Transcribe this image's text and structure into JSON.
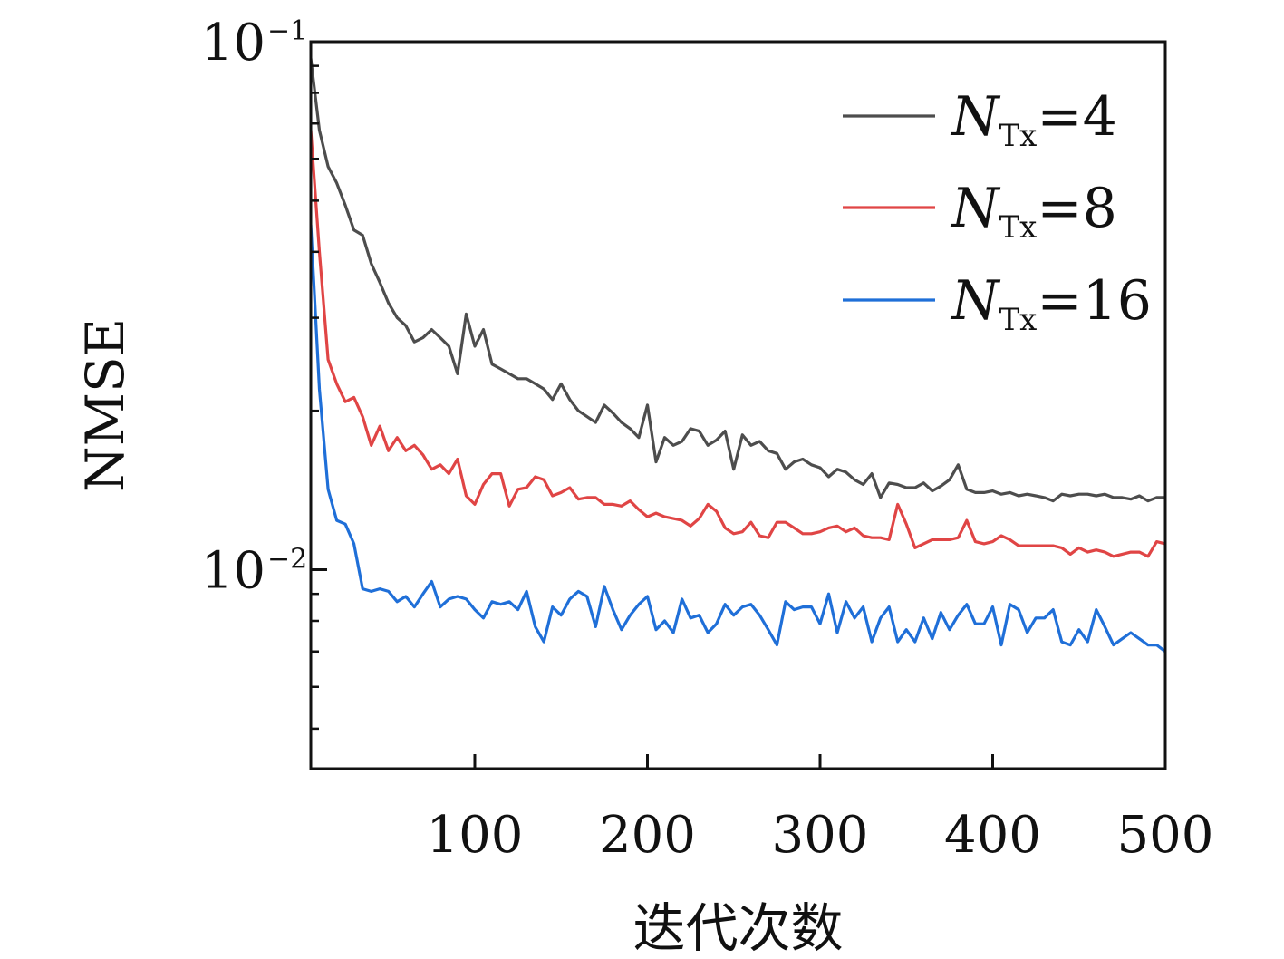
{
  "chart_data": {
    "type": "line",
    "xlabel": "迭代次数",
    "ylabel": "NMSE",
    "xlim": [
      5,
      500
    ],
    "ylim": [
      0.0042,
      0.1
    ],
    "yscale": "log",
    "xticks": [
      100,
      200,
      300,
      400,
      500
    ],
    "xtick_labels": [
      "100",
      "200",
      "300",
      "400",
      "500"
    ],
    "yticks": [
      0.1,
      0.01
    ],
    "ytick_labels": [
      {
        "base": "10",
        "exp": "−1"
      },
      {
        "base": "10",
        "exp": "−2"
      }
    ],
    "grid": false,
    "legend": "top-right",
    "series": [
      {
        "name": "N_Tx=4",
        "label_main": "N",
        "label_sub": "Tx",
        "label_rest": "=4",
        "color": "#4d4d4d",
        "x": [
          5,
          10,
          15,
          20,
          25,
          30,
          35,
          40,
          45,
          50,
          55,
          60,
          65,
          70,
          75,
          80,
          85,
          90,
          95,
          100,
          105,
          110,
          115,
          120,
          125,
          130,
          135,
          140,
          145,
          150,
          155,
          160,
          165,
          170,
          175,
          180,
          185,
          190,
          195,
          200,
          205,
          210,
          215,
          220,
          225,
          230,
          235,
          240,
          245,
          250,
          255,
          260,
          265,
          270,
          275,
          280,
          285,
          290,
          295,
          300,
          305,
          310,
          315,
          320,
          325,
          330,
          335,
          340,
          345,
          350,
          355,
          360,
          365,
          370,
          375,
          380,
          385,
          390,
          395,
          400,
          405,
          410,
          415,
          420,
          425,
          430,
          435,
          440,
          445,
          450,
          455,
          460,
          465,
          470,
          475,
          480,
          485,
          490,
          495,
          500
        ],
        "y": [
          0.093,
          0.068,
          0.058,
          0.054,
          0.049,
          0.044,
          0.043,
          0.038,
          0.035,
          0.032,
          0.03,
          0.029,
          0.027,
          0.0275,
          0.0285,
          0.0275,
          0.0265,
          0.0235,
          0.0305,
          0.0265,
          0.0285,
          0.0245,
          0.024,
          0.0235,
          0.023,
          0.023,
          0.0225,
          0.022,
          0.021,
          0.0225,
          0.021,
          0.02,
          0.0195,
          0.019,
          0.0205,
          0.0198,
          0.019,
          0.0185,
          0.0178,
          0.0205,
          0.016,
          0.0178,
          0.0172,
          0.0175,
          0.0185,
          0.0183,
          0.0172,
          0.0176,
          0.0183,
          0.0155,
          0.018,
          0.0172,
          0.0175,
          0.0168,
          0.0166,
          0.0155,
          0.016,
          0.0162,
          0.0158,
          0.0156,
          0.015,
          0.0155,
          0.0153,
          0.0148,
          0.0145,
          0.0152,
          0.0137,
          0.0146,
          0.0145,
          0.0143,
          0.0143,
          0.0146,
          0.0141,
          0.0144,
          0.0148,
          0.0158,
          0.0142,
          0.014,
          0.014,
          0.0141,
          0.0139,
          0.014,
          0.0138,
          0.0139,
          0.0138,
          0.0137,
          0.0135,
          0.0139,
          0.0138,
          0.0139,
          0.0139,
          0.0138,
          0.0139,
          0.0137,
          0.0137,
          0.0136,
          0.0138,
          0.0135,
          0.0137,
          0.0137
        ]
      },
      {
        "name": "N_Tx=8",
        "label_main": "N",
        "label_sub": "Tx",
        "label_rest": "=8",
        "color": "#e04545",
        "x": [
          5,
          10,
          15,
          20,
          25,
          30,
          35,
          40,
          45,
          50,
          55,
          60,
          65,
          70,
          75,
          80,
          85,
          90,
          95,
          100,
          105,
          110,
          115,
          120,
          125,
          130,
          135,
          140,
          145,
          150,
          155,
          160,
          165,
          170,
          175,
          180,
          185,
          190,
          195,
          200,
          205,
          210,
          215,
          220,
          225,
          230,
          235,
          240,
          245,
          250,
          255,
          260,
          265,
          270,
          275,
          280,
          285,
          290,
          295,
          300,
          305,
          310,
          315,
          320,
          325,
          330,
          335,
          340,
          345,
          350,
          355,
          360,
          365,
          370,
          375,
          380,
          385,
          390,
          395,
          400,
          405,
          410,
          415,
          420,
          425,
          430,
          435,
          440,
          445,
          450,
          455,
          460,
          465,
          470,
          475,
          480,
          485,
          490,
          495,
          500
        ],
        "y": [
          0.068,
          0.04,
          0.025,
          0.0225,
          0.0208,
          0.0212,
          0.0195,
          0.0172,
          0.0187,
          0.0168,
          0.0178,
          0.0168,
          0.0172,
          0.0165,
          0.0155,
          0.0158,
          0.0152,
          0.0162,
          0.0138,
          0.0133,
          0.0145,
          0.0152,
          0.0152,
          0.0132,
          0.0142,
          0.0143,
          0.015,
          0.0148,
          0.0138,
          0.014,
          0.0143,
          0.0136,
          0.0137,
          0.0137,
          0.0133,
          0.0133,
          0.0132,
          0.0135,
          0.013,
          0.0126,
          0.0128,
          0.0126,
          0.0125,
          0.0124,
          0.0121,
          0.0125,
          0.0133,
          0.0129,
          0.012,
          0.0117,
          0.0118,
          0.0123,
          0.0116,
          0.0115,
          0.0123,
          0.0123,
          0.012,
          0.0117,
          0.0117,
          0.0118,
          0.012,
          0.0121,
          0.0118,
          0.012,
          0.0116,
          0.0115,
          0.0115,
          0.0114,
          0.0133,
          0.0122,
          0.011,
          0.0112,
          0.0114,
          0.0114,
          0.0114,
          0.0115,
          0.0124,
          0.0113,
          0.0112,
          0.0113,
          0.0116,
          0.0114,
          0.0111,
          0.0111,
          0.0111,
          0.0111,
          0.0111,
          0.011,
          0.0107,
          0.011,
          0.0108,
          0.0109,
          0.0108,
          0.0106,
          0.0107,
          0.0108,
          0.0108,
          0.0106,
          0.0113,
          0.0112
        ]
      },
      {
        "name": "N_Tx=16",
        "label_main": "N",
        "label_sub": "Tx",
        "label_rest": "=16",
        "color": "#1f6fd8",
        "x": [
          5,
          10,
          15,
          20,
          25,
          30,
          35,
          40,
          45,
          50,
          55,
          60,
          65,
          70,
          75,
          80,
          85,
          90,
          95,
          100,
          105,
          110,
          115,
          120,
          125,
          130,
          135,
          140,
          145,
          150,
          155,
          160,
          165,
          170,
          175,
          180,
          185,
          190,
          195,
          200,
          205,
          210,
          215,
          220,
          225,
          230,
          235,
          240,
          245,
          250,
          255,
          260,
          265,
          270,
          275,
          280,
          285,
          290,
          295,
          300,
          305,
          310,
          315,
          320,
          325,
          330,
          335,
          340,
          345,
          350,
          355,
          360,
          365,
          370,
          375,
          380,
          385,
          390,
          395,
          400,
          405,
          410,
          415,
          420,
          425,
          430,
          435,
          440,
          445,
          450,
          455,
          460,
          465,
          470,
          475,
          480,
          485,
          490,
          495,
          500
        ],
        "y": [
          0.045,
          0.022,
          0.0142,
          0.0124,
          0.0122,
          0.0112,
          0.0092,
          0.0091,
          0.0092,
          0.0091,
          0.0087,
          0.0089,
          0.0085,
          0.009,
          0.0095,
          0.0085,
          0.0088,
          0.0089,
          0.0088,
          0.0084,
          0.0081,
          0.0087,
          0.0086,
          0.0087,
          0.0084,
          0.0091,
          0.0078,
          0.0073,
          0.0085,
          0.0082,
          0.0088,
          0.0091,
          0.0089,
          0.0078,
          0.0093,
          0.0084,
          0.0077,
          0.0082,
          0.0086,
          0.0089,
          0.0077,
          0.008,
          0.0076,
          0.0088,
          0.0081,
          0.0082,
          0.0076,
          0.0079,
          0.0086,
          0.0082,
          0.0085,
          0.0086,
          0.0082,
          0.0077,
          0.0072,
          0.0087,
          0.0084,
          0.0085,
          0.0085,
          0.0079,
          0.009,
          0.0076,
          0.0087,
          0.0081,
          0.0085,
          0.0073,
          0.0081,
          0.0085,
          0.0073,
          0.0077,
          0.0073,
          0.0081,
          0.0074,
          0.0083,
          0.0077,
          0.0082,
          0.0086,
          0.0079,
          0.0079,
          0.0085,
          0.0072,
          0.0086,
          0.0084,
          0.0076,
          0.0081,
          0.0081,
          0.0084,
          0.0073,
          0.0072,
          0.0077,
          0.0073,
          0.0084,
          0.0078,
          0.0072,
          0.0074,
          0.0076,
          0.0074,
          0.0072,
          0.0072,
          0.007
        ]
      }
    ]
  }
}
